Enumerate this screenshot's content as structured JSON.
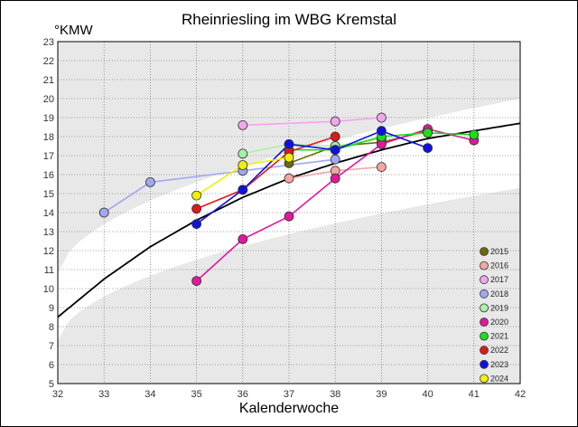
{
  "chart_data": {
    "type": "line",
    "title": "Rheinriesling im WBG Kremstal",
    "ylabel": "°KMW",
    "xlabel": "Kalenderwoche",
    "xlim": [
      32,
      42
    ],
    "ylim": [
      5,
      23
    ],
    "x_ticks": [
      "32",
      "33",
      "34",
      "35",
      "36",
      "37",
      "38",
      "39",
      "40",
      "41",
      "42"
    ],
    "y_ticks": [
      "5",
      "6",
      "7",
      "8",
      "9",
      "10",
      "11",
      "12",
      "13",
      "14",
      "15",
      "16",
      "17",
      "18",
      "19",
      "20",
      "21",
      "22",
      "23"
    ],
    "grid": true,
    "legend_position": "bottom-right",
    "trend_curve": [
      [
        32,
        8.5
      ],
      [
        33,
        10.5
      ],
      [
        34,
        12.2
      ],
      [
        35,
        13.6
      ],
      [
        36,
        14.8
      ],
      [
        37,
        15.8
      ],
      [
        38,
        16.6
      ],
      [
        39,
        17.3
      ],
      [
        40,
        17.9
      ],
      [
        41,
        18.3
      ],
      [
        42,
        18.7
      ]
    ],
    "series": [
      {
        "name": "2015",
        "color": "#6b6b00",
        "points": [
          [
            37,
            16.6
          ],
          [
            38,
            17.5
          ],
          [
            39,
            17.7
          ],
          [
            40,
            18.3
          ]
        ]
      },
      {
        "name": "2016",
        "color": "#f4a6a0",
        "points": [
          [
            37,
            15.8
          ],
          [
            38,
            16.2
          ],
          [
            39,
            16.4
          ]
        ]
      },
      {
        "name": "2017",
        "color": "#f2a6f2",
        "points": [
          [
            36,
            18.6
          ],
          [
            38,
            18.8
          ],
          [
            39,
            19.0
          ]
        ]
      },
      {
        "name": "2018",
        "color": "#a0a8f0",
        "points": [
          [
            33,
            14.0
          ],
          [
            34,
            15.6
          ],
          [
            36,
            16.2
          ],
          [
            38,
            16.8
          ]
        ]
      },
      {
        "name": "2019",
        "color": "#a8f0a8",
        "points": [
          [
            36,
            17.1
          ],
          [
            37,
            17.6
          ],
          [
            38,
            17.5
          ],
          [
            39,
            17.9
          ]
        ]
      },
      {
        "name": "2020",
        "color": "#e0189c",
        "points": [
          [
            35,
            10.4
          ],
          [
            36,
            12.6
          ],
          [
            37,
            13.8
          ],
          [
            38,
            15.8
          ],
          [
            39,
            17.6
          ],
          [
            40,
            18.4
          ],
          [
            41,
            17.8
          ]
        ]
      },
      {
        "name": "2021",
        "color": "#18e018",
        "points": [
          [
            37,
            17.3
          ],
          [
            38,
            17.3
          ],
          [
            39,
            18.0
          ],
          [
            40,
            18.2
          ],
          [
            41,
            18.1
          ]
        ]
      },
      {
        "name": "2022",
        "color": "#e01818",
        "points": [
          [
            35,
            14.2
          ],
          [
            36,
            15.2
          ],
          [
            37,
            17.2
          ],
          [
            38,
            18.0
          ]
        ]
      },
      {
        "name": "2023",
        "color": "#1010e0",
        "points": [
          [
            35,
            13.4
          ],
          [
            36,
            15.2
          ],
          [
            37,
            17.6
          ],
          [
            38,
            17.3
          ],
          [
            39,
            18.3
          ],
          [
            40,
            17.4
          ]
        ]
      },
      {
        "name": "2024",
        "color": "#f0f000",
        "points": [
          [
            35,
            14.9
          ],
          [
            36,
            16.5
          ],
          [
            37,
            16.9
          ]
        ]
      }
    ]
  }
}
